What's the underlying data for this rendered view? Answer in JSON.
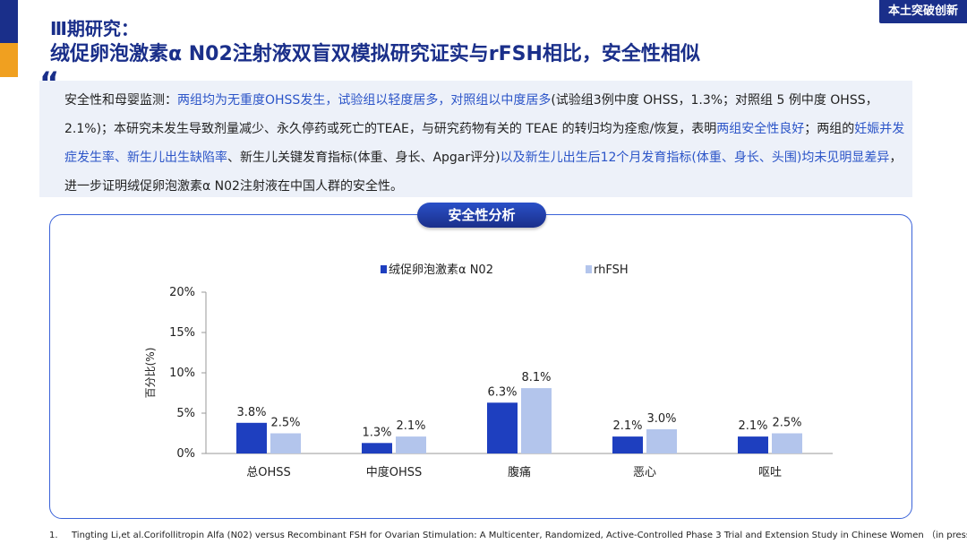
{
  "brand": "本土突破创新",
  "header": {
    "title_line1": "Ⅲ期研究：",
    "title_line2": "绒促卵泡激素α N02注射液双盲双模拟研究证实与rFSH相比，安全性相似"
  },
  "summary": {
    "quote_mark": "“",
    "segments": [
      {
        "text": "安全性和母婴监测：",
        "hl": false
      },
      {
        "text": "两组均为无重度OHSS发生，试验组以轻度居多，对照组以中度居多",
        "hl": true
      },
      {
        "text": "(试验组3例中度 OHSS，1.3%；对照组 5 例中度 OHSS，2.1%)；本研究未发生导致剂量减少、永久停药或死亡的TEAE，与研究药物有关的 TEAE 的转归均为痊愈/恢复，表明",
        "hl": false
      },
      {
        "text": "两组安全性良好",
        "hl": true
      },
      {
        "text": "；两组的",
        "hl": false
      },
      {
        "text": "妊娠并发症发生率、新生儿出生缺陷率",
        "hl": true
      },
      {
        "text": "、新生儿关键发育指标(体重、身长、Apgar评分)",
        "hl": false
      },
      {
        "text": "以及新生儿出生后12个月发育指标(体重、身长、头围)均未见明显差异",
        "hl": true
      },
      {
        "text": "，进一步证明绒促卵泡激素α N02注射液在中国人群的安全性。",
        "hl": false
      }
    ]
  },
  "section_label": "安全性分析",
  "colors": {
    "series1": "#1e3fbf",
    "series2": "#b3c5ec"
  },
  "chart_data": {
    "type": "bar",
    "categories": [
      "总OHSS",
      "中度OHSS",
      "腹痛",
      "恶心",
      "呕吐"
    ],
    "series": [
      {
        "name": "绒促卵泡激素α N02",
        "values": [
          3.8,
          1.3,
          6.3,
          2.1,
          2.1
        ],
        "labels": [
          "3.8%",
          "1.3%",
          "6.3%",
          "2.1%",
          "2.1%"
        ]
      },
      {
        "name": "rhFSH",
        "values": [
          2.5,
          2.1,
          8.1,
          3.0,
          2.5
        ],
        "labels": [
          "2.5%",
          "2.1%",
          "8.1%",
          "3.0%",
          "2.5%"
        ]
      }
    ],
    "ylabel": "百分比(%)",
    "ylim": [
      0,
      20
    ],
    "yticks": [
      0,
      5,
      10,
      15,
      20
    ],
    "ytick_labels": [
      "0%",
      "5%",
      "10%",
      "15%",
      "20%"
    ],
    "grid": false,
    "legend": "top-center"
  },
  "footnote": {
    "num": "1.",
    "text": "Tingting Li,et al.Corifollitropin Alfa (N02) versus Recombinant FSH for Ovarian Stimulation: A Multicenter, Randomized, Active-Controlled Phase 3 Trial and Extension Study in Chinese Women （in press)"
  }
}
